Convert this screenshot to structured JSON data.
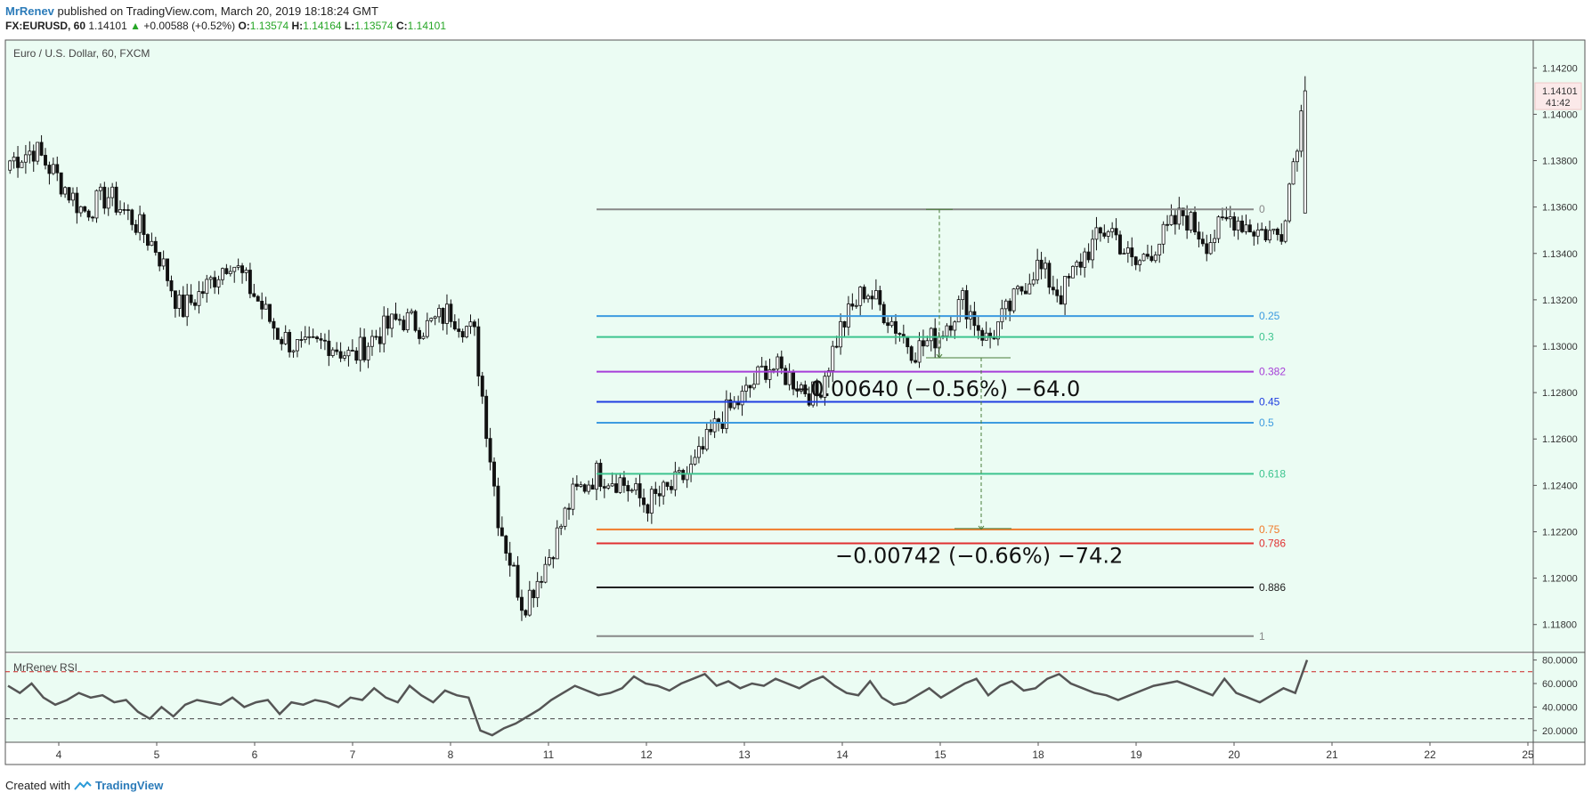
{
  "header": {
    "author": "MrRenev",
    "published_text": "published on TradingView.com, March 20, 2019 18:18:24 GMT",
    "symbol": "FX:EURUSD, 60",
    "last": "1.14101",
    "change": "+0.00588 (+0.52%)",
    "o_label": "O:",
    "o": "1.13574",
    "h_label": "H:",
    "h": "1.14164",
    "l_label": "L:",
    "l": "1.13574",
    "c_label": "C:",
    "c": "1.14101"
  },
  "footer": {
    "created_with": "Created with",
    "brand": "TradingView"
  },
  "colors": {
    "background": "#ebfcf3",
    "up_arrow": "#26a626",
    "rsi_line": "#555555",
    "rsi_bands": "#cc2222"
  },
  "chart_data": [
    {
      "type": "candlestick",
      "title": "Euro / U.S. Dollar, 60, FXCM",
      "x_tick_labels": [
        "4",
        "5",
        "6",
        "7",
        "8",
        "11",
        "12",
        "13",
        "14",
        "15",
        "18",
        "19",
        "20",
        "21",
        "22",
        "25"
      ],
      "ylim": [
        1.1168,
        1.1432
      ],
      "y_ticks": [
        "1.14200",
        "1.14000",
        "1.13800",
        "1.13600",
        "1.13400",
        "1.13200",
        "1.13000",
        "1.12800",
        "1.12600",
        "1.12400",
        "1.12200",
        "1.12000",
        "1.11800"
      ],
      "last_price_label": "1.14101",
      "countdown_label": "41:42",
      "series_anchor_closes": [
        1.138,
        1.1385,
        1.1372,
        1.1358,
        1.1365,
        1.1355,
        1.1342,
        1.1315,
        1.1325,
        1.1338,
        1.1322,
        1.1305,
        1.1298,
        1.1302,
        1.1295,
        1.1305,
        1.1312,
        1.1308,
        1.1315,
        1.1305,
        1.1225,
        1.1188,
        1.1208,
        1.1235,
        1.1245,
        1.1242,
        1.1232,
        1.1238,
        1.1248,
        1.1268,
        1.1278,
        1.1292,
        1.1286,
        1.1278,
        1.1308,
        1.1325,
        1.1312,
        1.1298,
        1.1305,
        1.132,
        1.1302,
        1.1318,
        1.1335,
        1.1322,
        1.134,
        1.1352,
        1.1334,
        1.1345,
        1.1357,
        1.1345,
        1.1356,
        1.135,
        1.1348,
        1.141
      ],
      "fibonacci": {
        "levels": [
          {
            "label": "0",
            "price": 1.1359,
            "color": "#888888"
          },
          {
            "label": "0.25",
            "price": 1.1313,
            "color": "#3d9be0"
          },
          {
            "label": "0.3",
            "price": 1.1304,
            "color": "#3dc48f"
          },
          {
            "label": "0.382",
            "price": 1.1289,
            "color": "#a63ed8"
          },
          {
            "label": "0.45",
            "price": 1.1276,
            "color": "#1f3ee0"
          },
          {
            "label": "0.5",
            "price": 1.1267,
            "color": "#3d9be0"
          },
          {
            "label": "0.618",
            "price": 1.1245,
            "color": "#3dc48f"
          },
          {
            "label": "0.75",
            "price": 1.1221,
            "color": "#f07b2b"
          },
          {
            "label": "0.786",
            "price": 1.1215,
            "color": "#e03030"
          },
          {
            "label": "0.886",
            "price": 1.1196,
            "color": "#222222"
          },
          {
            "label": "1",
            "price": 1.1175,
            "color": "#888888"
          }
        ]
      },
      "measurements": [
        {
          "text": "−0.00640 (−0.56%) −64.0",
          "from_price": 1.1359,
          "to_price": 1.1295
        },
        {
          "text": "−0.00742 (−0.66%) −74.2",
          "from_price": 1.1295,
          "to_price": 1.1221
        }
      ]
    },
    {
      "type": "line",
      "title": "MrRenev RSI",
      "ylim": [
        10,
        85
      ],
      "y_ticks": [
        "80.0000",
        "60.0000",
        "40.0000",
        "20.0000"
      ],
      "bands": [
        70,
        30
      ],
      "values": [
        58,
        52,
        60,
        48,
        42,
        46,
        52,
        48,
        50,
        44,
        46,
        36,
        30,
        40,
        32,
        42,
        46,
        44,
        42,
        48,
        40,
        44,
        46,
        34,
        44,
        42,
        46,
        44,
        40,
        48,
        46,
        56,
        48,
        44,
        58,
        50,
        44,
        54,
        50,
        48,
        20,
        16,
        22,
        26,
        32,
        38,
        46,
        52,
        58,
        54,
        50,
        52,
        56,
        66,
        60,
        58,
        54,
        60,
        64,
        68,
        58,
        62,
        56,
        60,
        58,
        64,
        60,
        56,
        62,
        66,
        58,
        52,
        50,
        62,
        48,
        42,
        44,
        50,
        56,
        48,
        54,
        60,
        64,
        50,
        58,
        62,
        54,
        56,
        64,
        68,
        60,
        56,
        52,
        50,
        46,
        50,
        54,
        58,
        60,
        62,
        58,
        54,
        50,
        64,
        52,
        48,
        44,
        50,
        56,
        52,
        80
      ]
    }
  ]
}
